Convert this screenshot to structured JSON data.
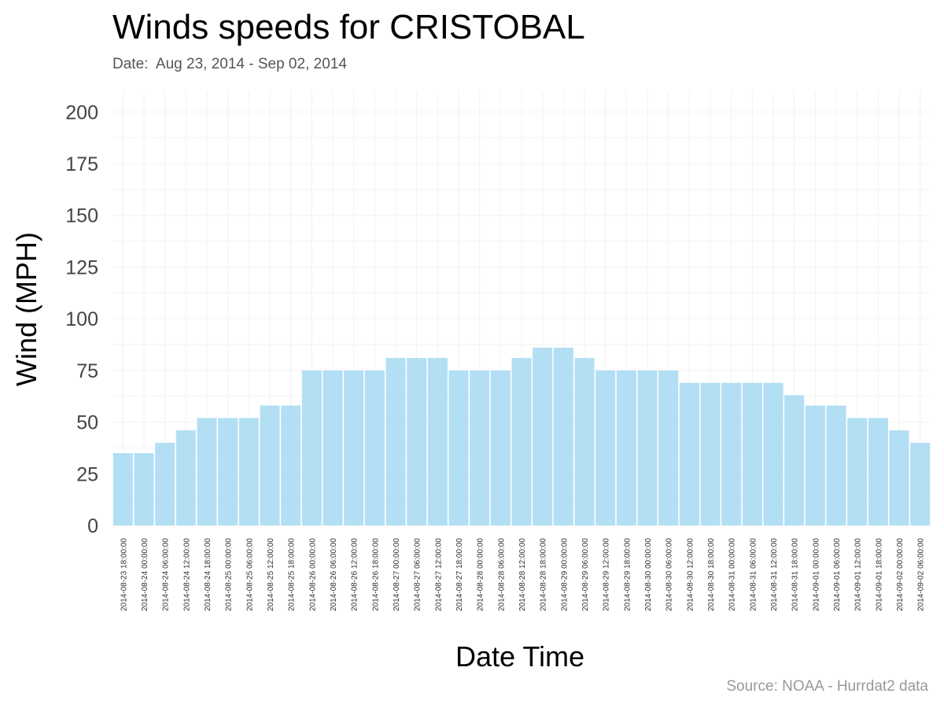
{
  "chart_data": {
    "type": "bar",
    "title": "Winds speeds for CRISTOBAL",
    "subtitle": "Date:  Aug 23, 2014 - Sep 02, 2014",
    "xlabel": "Date Time",
    "ylabel": "Wind (MPH)",
    "source": "Source: NOAA - Hurrdat2 data",
    "ylim": [
      0,
      210
    ],
    "yticks": [
      0,
      25,
      50,
      75,
      100,
      125,
      150,
      175,
      200
    ],
    "grid": true,
    "bar_color": "#b3dff4",
    "categories": [
      "2014-08-23 18:00:00",
      "2014-08-24 00:00:00",
      "2014-08-24 06:00:00",
      "2014-08-24 12:00:00",
      "2014-08-24 18:00:00",
      "2014-08-25 00:00:00",
      "2014-08-25 06:00:00",
      "2014-08-25 12:00:00",
      "2014-08-25 18:00:00",
      "2014-08-26 00:00:00",
      "2014-08-26 06:00:00",
      "2014-08-26 12:00:00",
      "2014-08-26 18:00:00",
      "2014-08-27 00:00:00",
      "2014-08-27 06:00:00",
      "2014-08-27 12:00:00",
      "2014-08-27 18:00:00",
      "2014-08-28 00:00:00",
      "2014-08-28 06:00:00",
      "2014-08-28 12:00:00",
      "2014-08-28 18:00:00",
      "2014-08-29 00:00:00",
      "2014-08-29 06:00:00",
      "2014-08-29 12:00:00",
      "2014-08-29 18:00:00",
      "2014-08-30 00:00:00",
      "2014-08-30 06:00:00",
      "2014-08-30 12:00:00",
      "2014-08-30 18:00:00",
      "2014-08-31 00:00:00",
      "2014-08-31 06:00:00",
      "2014-08-31 12:00:00",
      "2014-08-31 18:00:00",
      "2014-09-01 00:00:00",
      "2014-09-01 06:00:00",
      "2014-09-01 12:00:00",
      "2014-09-01 18:00:00",
      "2014-09-02 00:00:00",
      "2014-09-02 06:00:00"
    ],
    "values": [
      35,
      35,
      40,
      46,
      52,
      52,
      52,
      58,
      58,
      75,
      75,
      75,
      75,
      81,
      81,
      81,
      75,
      75,
      75,
      81,
      86,
      86,
      81,
      75,
      75,
      75,
      75,
      69,
      69,
      69,
      69,
      69,
      63,
      58,
      58,
      52,
      52,
      46,
      40
    ]
  }
}
